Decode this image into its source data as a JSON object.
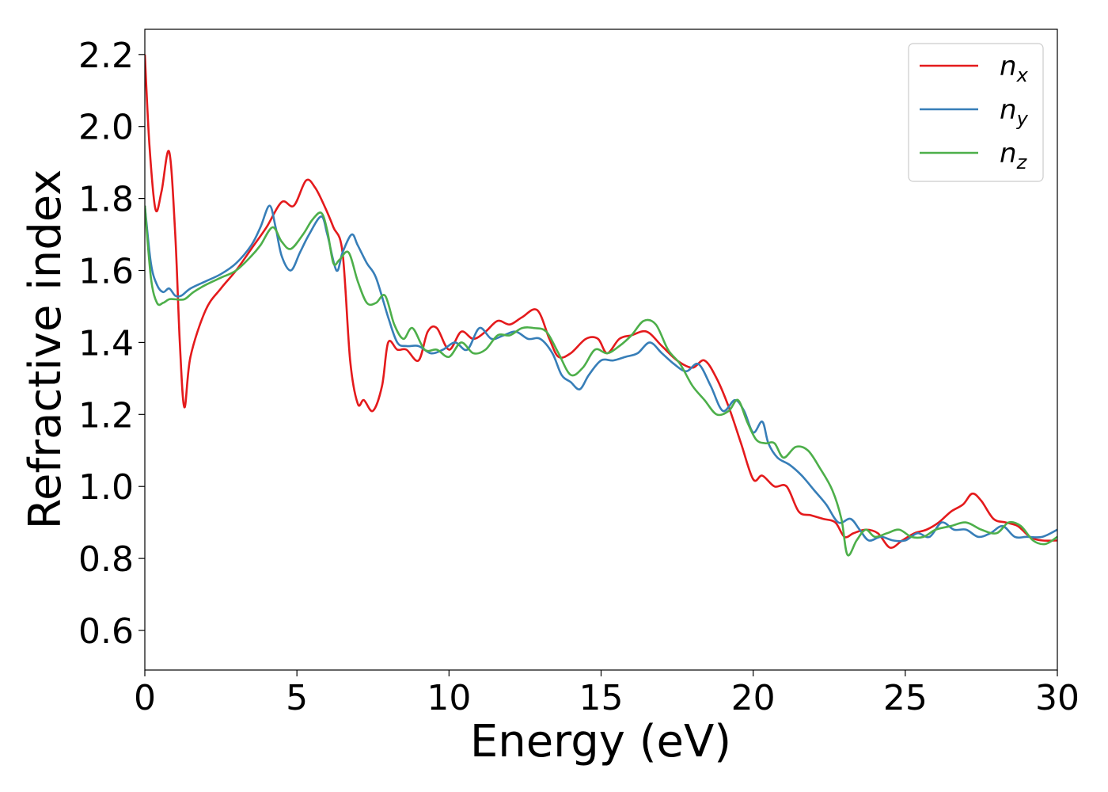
{
  "chart_data": {
    "type": "line",
    "xlabel": "Energy (eV)",
    "ylabel": "Refractive index",
    "xlim": [
      0,
      30
    ],
    "ylim": [
      0.49,
      2.27
    ],
    "xticks": [
      0,
      5,
      10,
      15,
      20,
      25,
      30
    ],
    "xtick_labels": [
      "0",
      "5",
      "10",
      "15",
      "20",
      "25",
      "30"
    ],
    "yticks": [
      0.6,
      0.8,
      1.0,
      1.2,
      1.4,
      1.6,
      1.8,
      2.0,
      2.2
    ],
    "ytick_labels": [
      "0.6",
      "0.8",
      "1.0",
      "1.2",
      "1.4",
      "1.6",
      "1.8",
      "2.0",
      "2.2"
    ],
    "grid": false,
    "legend_position": "top-right",
    "series": [
      {
        "name": "n_x",
        "label_main": "n",
        "label_sub": "x",
        "color": "#e41a1c",
        "x": [
          0,
          0.15,
          0.35,
          0.55,
          0.8,
          1.0,
          1.15,
          1.3,
          1.5,
          2.0,
          2.5,
          3.0,
          3.5,
          4.0,
          4.5,
          4.9,
          5.3,
          5.6,
          5.9,
          6.2,
          6.5,
          6.75,
          7.0,
          7.2,
          7.5,
          7.8,
          8.0,
          8.3,
          8.6,
          9.0,
          9.3,
          9.6,
          10.0,
          10.4,
          10.8,
          11.2,
          11.6,
          12.0,
          12.4,
          12.9,
          13.3,
          13.6,
          14.0,
          14.5,
          14.9,
          15.2,
          15.6,
          16.0,
          16.5,
          17.0,
          17.5,
          18.0,
          18.4,
          18.8,
          19.2,
          19.6,
          20.0,
          20.3,
          20.7,
          21.1,
          21.5,
          21.9,
          22.3,
          22.7,
          23.0,
          23.3,
          23.7,
          24.1,
          24.5,
          24.9,
          25.3,
          25.7,
          26.1,
          26.5,
          26.9,
          27.2,
          27.5,
          27.9,
          28.3,
          28.7,
          29.1,
          29.5,
          30.0
        ],
        "y": [
          2.2,
          1.95,
          1.77,
          1.82,
          1.93,
          1.7,
          1.4,
          1.22,
          1.36,
          1.49,
          1.55,
          1.6,
          1.66,
          1.72,
          1.79,
          1.78,
          1.85,
          1.83,
          1.78,
          1.72,
          1.65,
          1.35,
          1.23,
          1.24,
          1.21,
          1.28,
          1.4,
          1.38,
          1.38,
          1.35,
          1.43,
          1.44,
          1.38,
          1.43,
          1.41,
          1.43,
          1.46,
          1.45,
          1.47,
          1.49,
          1.41,
          1.36,
          1.37,
          1.41,
          1.41,
          1.37,
          1.41,
          1.42,
          1.43,
          1.39,
          1.35,
          1.33,
          1.35,
          1.3,
          1.22,
          1.12,
          1.02,
          1.03,
          1.0,
          1.0,
          0.93,
          0.92,
          0.91,
          0.9,
          0.86,
          0.87,
          0.88,
          0.87,
          0.83,
          0.85,
          0.87,
          0.88,
          0.9,
          0.93,
          0.95,
          0.98,
          0.96,
          0.91,
          0.9,
          0.89,
          0.86,
          0.85,
          0.85
        ]
      },
      {
        "name": "n_y",
        "label_main": "n",
        "label_sub": "y",
        "color": "#377eb8",
        "x": [
          0,
          0.2,
          0.4,
          0.6,
          0.8,
          1.0,
          1.2,
          1.5,
          2.0,
          2.5,
          3.0,
          3.5,
          3.8,
          4.1,
          4.3,
          4.5,
          4.8,
          5.1,
          5.4,
          5.8,
          6.0,
          6.3,
          6.5,
          6.8,
          7.0,
          7.3,
          7.6,
          8.0,
          8.3,
          8.6,
          9.0,
          9.4,
          9.8,
          10.2,
          10.6,
          11.0,
          11.4,
          11.8,
          12.2,
          12.6,
          13.0,
          13.4,
          13.7,
          14.0,
          14.3,
          14.6,
          15.0,
          15.4,
          15.8,
          16.2,
          16.6,
          17.0,
          17.4,
          17.8,
          18.2,
          18.6,
          19.0,
          19.4,
          19.7,
          20.0,
          20.3,
          20.5,
          20.8,
          21.2,
          21.6,
          22.0,
          22.4,
          22.8,
          23.2,
          23.5,
          23.8,
          24.2,
          24.6,
          25.0,
          25.4,
          25.8,
          26.2,
          26.6,
          27.0,
          27.4,
          27.8,
          28.2,
          28.6,
          29.0,
          29.5,
          30.0
        ],
        "y": [
          1.78,
          1.62,
          1.56,
          1.54,
          1.55,
          1.53,
          1.53,
          1.55,
          1.57,
          1.59,
          1.62,
          1.67,
          1.72,
          1.78,
          1.72,
          1.64,
          1.6,
          1.65,
          1.7,
          1.75,
          1.7,
          1.6,
          1.65,
          1.7,
          1.67,
          1.62,
          1.58,
          1.47,
          1.4,
          1.39,
          1.39,
          1.37,
          1.38,
          1.4,
          1.38,
          1.44,
          1.41,
          1.42,
          1.43,
          1.41,
          1.41,
          1.37,
          1.31,
          1.29,
          1.27,
          1.31,
          1.35,
          1.35,
          1.36,
          1.37,
          1.4,
          1.37,
          1.34,
          1.32,
          1.34,
          1.28,
          1.21,
          1.24,
          1.21,
          1.15,
          1.18,
          1.12,
          1.08,
          1.06,
          1.03,
          0.99,
          0.95,
          0.9,
          0.91,
          0.88,
          0.85,
          0.86,
          0.85,
          0.85,
          0.87,
          0.86,
          0.9,
          0.88,
          0.88,
          0.86,
          0.87,
          0.89,
          0.86,
          0.86,
          0.86,
          0.88
        ]
      },
      {
        "name": "n_z",
        "label_main": "n",
        "label_sub": "z",
        "color": "#4daf4a",
        "x": [
          0,
          0.2,
          0.4,
          0.6,
          0.8,
          1.0,
          1.3,
          1.6,
          2.0,
          2.5,
          3.0,
          3.5,
          3.8,
          4.2,
          4.5,
          4.8,
          5.2,
          5.5,
          5.8,
          6.0,
          6.2,
          6.4,
          6.7,
          7.0,
          7.3,
          7.6,
          7.9,
          8.2,
          8.5,
          8.8,
          9.2,
          9.6,
          10.0,
          10.4,
          10.8,
          11.2,
          11.6,
          12.0,
          12.4,
          12.8,
          13.2,
          13.6,
          14.0,
          14.4,
          14.8,
          15.2,
          15.6,
          16.0,
          16.4,
          16.8,
          17.2,
          17.6,
          18.0,
          18.4,
          18.8,
          19.2,
          19.5,
          19.8,
          20.1,
          20.4,
          20.7,
          21.0,
          21.4,
          21.8,
          22.2,
          22.6,
          22.9,
          23.1,
          23.4,
          23.7,
          24.0,
          24.4,
          24.8,
          25.2,
          25.6,
          26.0,
          26.5,
          27.0,
          27.5,
          28.0,
          28.4,
          28.8,
          29.2,
          29.6,
          30.0
        ],
        "y": [
          1.78,
          1.58,
          1.51,
          1.51,
          1.52,
          1.52,
          1.52,
          1.54,
          1.56,
          1.58,
          1.6,
          1.64,
          1.67,
          1.72,
          1.68,
          1.66,
          1.7,
          1.74,
          1.76,
          1.71,
          1.62,
          1.63,
          1.65,
          1.57,
          1.51,
          1.51,
          1.53,
          1.45,
          1.41,
          1.44,
          1.38,
          1.38,
          1.36,
          1.4,
          1.37,
          1.38,
          1.42,
          1.42,
          1.44,
          1.44,
          1.43,
          1.37,
          1.31,
          1.33,
          1.38,
          1.37,
          1.39,
          1.42,
          1.46,
          1.45,
          1.38,
          1.34,
          1.28,
          1.24,
          1.2,
          1.21,
          1.24,
          1.18,
          1.13,
          1.12,
          1.12,
          1.08,
          1.11,
          1.1,
          1.05,
          0.99,
          0.91,
          0.81,
          0.85,
          0.88,
          0.86,
          0.87,
          0.88,
          0.86,
          0.86,
          0.88,
          0.89,
          0.9,
          0.88,
          0.87,
          0.9,
          0.89,
          0.85,
          0.84,
          0.86
        ]
      }
    ]
  }
}
